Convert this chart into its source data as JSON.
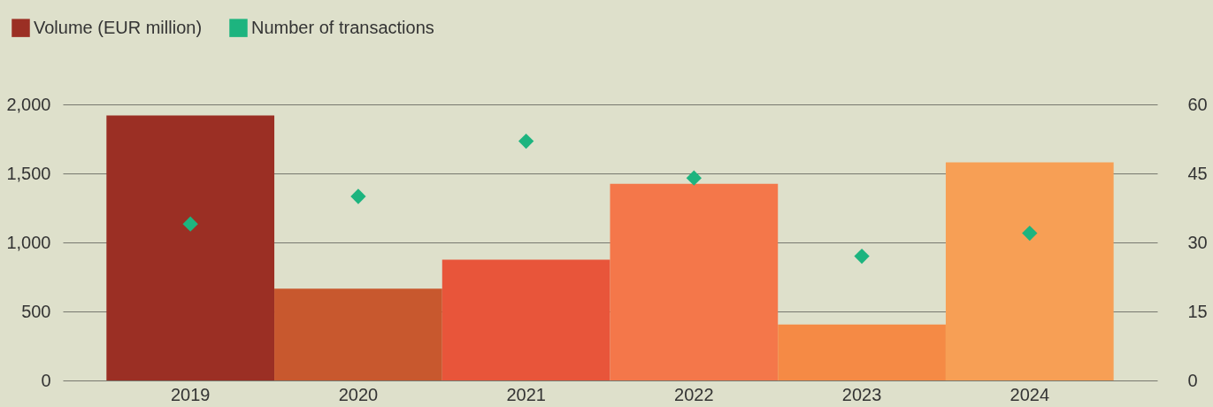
{
  "chart_data": {
    "type": "bar",
    "categories": [
      "2019",
      "2020",
      "2021",
      "2022",
      "2023",
      "2024"
    ],
    "series": [
      {
        "name": "Volume (EUR million)",
        "type": "bar",
        "color": "#9b2f24",
        "colors": [
          "#9b2f24",
          "#c8582e",
          "#e8553a",
          "#f4774a",
          "#f58a45",
          "#f79f55"
        ],
        "values": [
          1920,
          665,
          875,
          1425,
          405,
          1580
        ]
      },
      {
        "name": "Number of transactions",
        "type": "scatter",
        "axis": "y2",
        "color": "#1db47f",
        "values": [
          34,
          40,
          52,
          44,
          27,
          32
        ]
      }
    ],
    "ylim": [
      0,
      2000
    ],
    "yticks": [
      0,
      500,
      {
        "value": 1000,
        "label": "1,000"
      },
      {
        "value": 1500,
        "label": "1,500"
      },
      {
        "value": 2000,
        "label": "2,000"
      }
    ],
    "y2lim": [
      0,
      60
    ],
    "y2ticks": [
      0,
      15,
      30,
      45,
      60
    ],
    "grid": "y",
    "legend": "top left",
    "marker": "diamond"
  }
}
